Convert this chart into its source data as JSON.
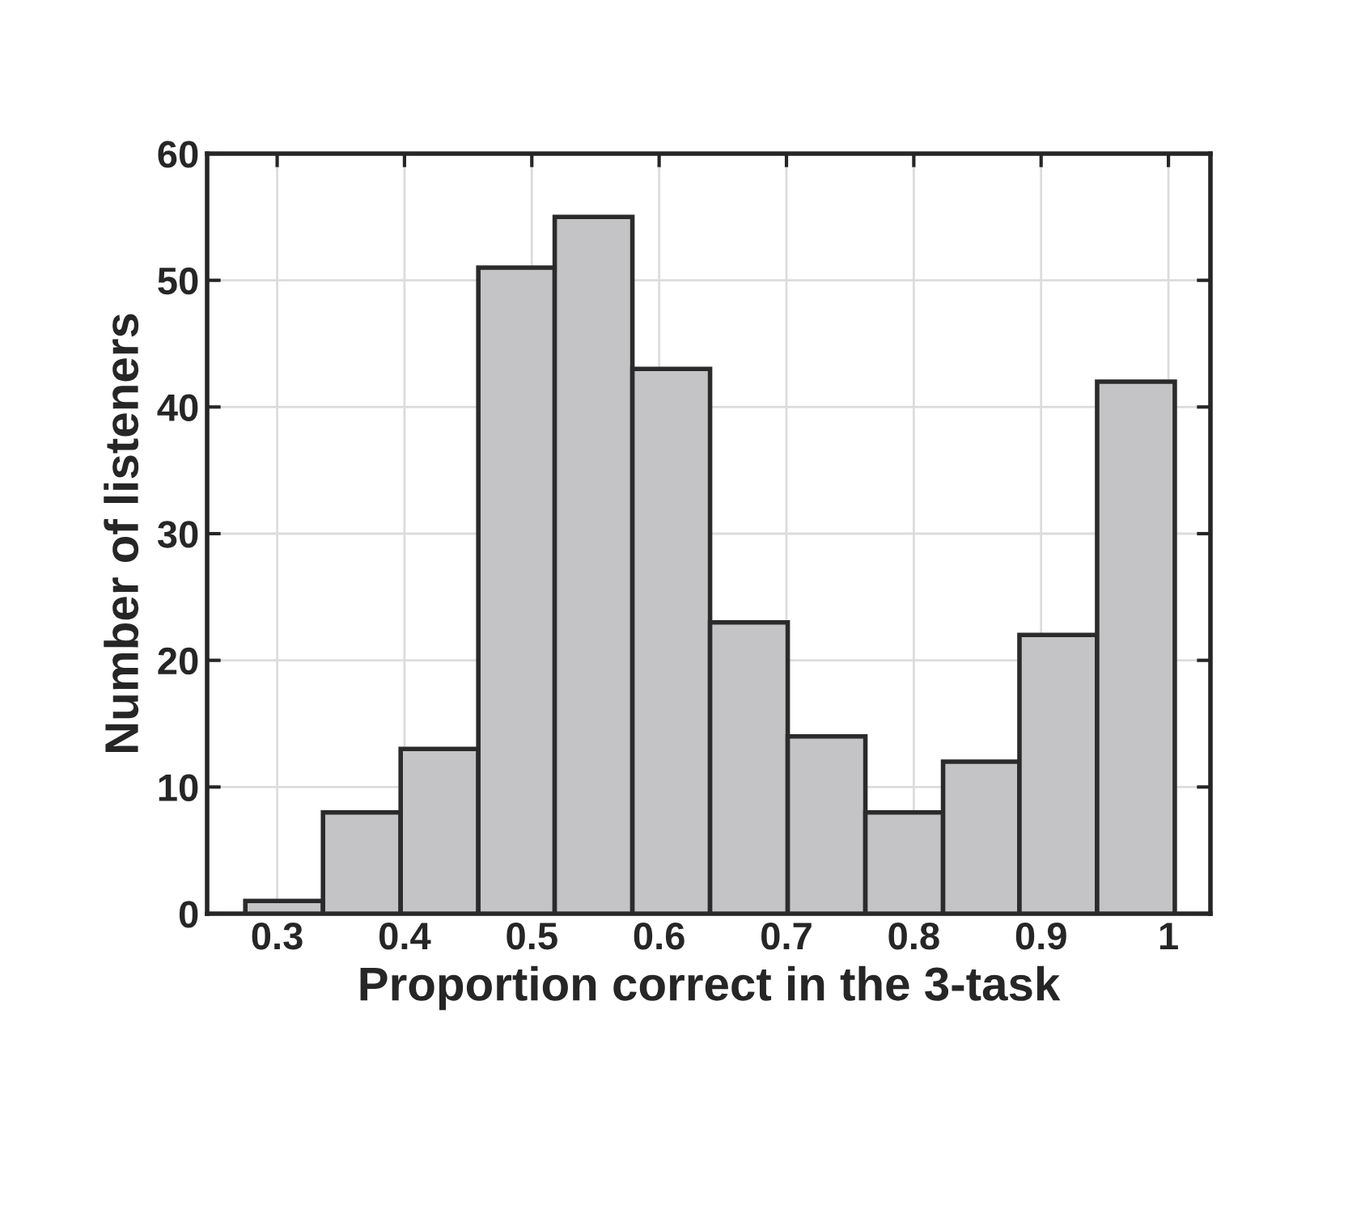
{
  "chart_data": {
    "type": "histogram",
    "xlabel": "Proportion correct in the 3-task",
    "ylabel": "Number of listeners",
    "bins": [
      0.275,
      0.336,
      0.397,
      0.458,
      0.518,
      0.579,
      0.64,
      0.701,
      0.762,
      0.823,
      0.883,
      0.944,
      1.005
    ],
    "values": [
      1,
      8,
      13,
      51,
      55,
      43,
      23,
      14,
      8,
      12,
      22,
      42
    ],
    "color": "#c4c4c6",
    "xlim": [
      0.245,
      1.033
    ],
    "xticks": [
      0.3,
      0.4,
      0.5,
      0.6,
      0.7,
      0.8,
      0.9,
      1
    ],
    "ylim": [
      0,
      60
    ],
    "yticks": [
      0,
      10,
      20,
      30,
      40,
      50,
      60
    ],
    "grid": true
  }
}
